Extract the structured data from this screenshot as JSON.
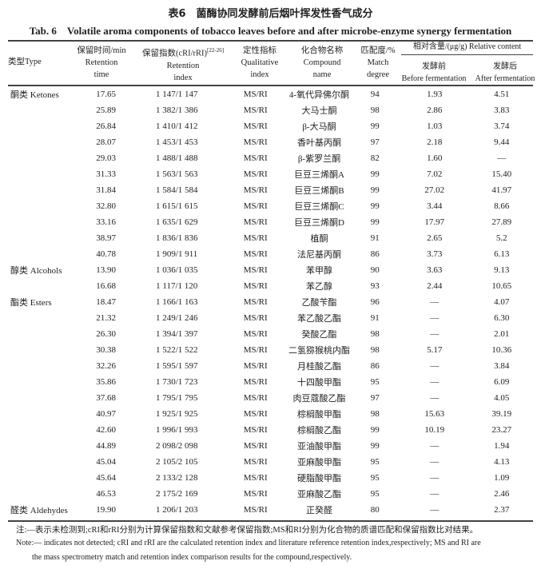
{
  "title_cn": "表6　菌酶协同发酵前后烟叶挥发性香气成分",
  "title_en": "Tab. 6　Volatile aroma components of tobacco leaves before and after microbe-enzyme synergy fermentation",
  "headers": {
    "type": "类型Type",
    "time_cn": "保留时间/min",
    "time_en1": "Retention",
    "time_en2": "time",
    "ri_cn": "保留指数(cRI/rRI)",
    "ri_ref": "[22-26]",
    "ri_en1": "Retention",
    "ri_en2": "index",
    "qual_cn": "定性指标",
    "qual_en1": "Qualitative",
    "qual_en2": "index",
    "comp_cn": "化合物名称",
    "comp_en1": "Compound",
    "comp_en2": "name",
    "match_cn": "匹配度/%",
    "match_en1": "Match",
    "match_en2": "degree",
    "rel": "相对含量/(μg/g) Relative content",
    "before_cn": "发酵前",
    "before_en": "Before fermentation",
    "after_cn": "发酵后",
    "after_en": "After fermentation"
  },
  "rows": [
    [
      "酮类 Ketones",
      "17.65",
      "1 147/1 147",
      "MS/RI",
      "4-氧代异佛尔酮",
      "94",
      "1.93",
      "4.51"
    ],
    [
      "",
      "25.89",
      "1 382/1 386",
      "MS/RI",
      "大马士酮",
      "98",
      "2.86",
      "3.83"
    ],
    [
      "",
      "26.84",
      "1 410/1 412",
      "MS/RI",
      "β-大马酮",
      "99",
      "1.03",
      "3.74"
    ],
    [
      "",
      "28.07",
      "1 453/1 453",
      "MS/RI",
      "香叶基丙酮",
      "97",
      "2.18",
      "9.44"
    ],
    [
      "",
      "29.03",
      "1 488/1 488",
      "MS/RI",
      "β-紫罗兰酮",
      "82",
      "1.60",
      "—"
    ],
    [
      "",
      "31.33",
      "1 563/1 563",
      "MS/RI",
      "巨豆三烯酮A",
      "99",
      "7.02",
      "15.40"
    ],
    [
      "",
      "31.84",
      "1 584/1 584",
      "MS/RI",
      "巨豆三烯酮B",
      "99",
      "27.02",
      "41.97"
    ],
    [
      "",
      "32.80",
      "1 615/1 615",
      "MS/RI",
      "巨豆三烯酮C",
      "99",
      "3.44",
      "8.66"
    ],
    [
      "",
      "33.16",
      "1 635/1 629",
      "MS/RI",
      "巨豆三烯酮D",
      "99",
      "17.97",
      "27.89"
    ],
    [
      "",
      "38.97",
      "1 836/1 836",
      "MS/RI",
      "植酮",
      "91",
      "2.65",
      "5.2"
    ],
    [
      "",
      "40.78",
      "1 909/1 911",
      "MS/RI",
      "法尼基丙酮",
      "86",
      "3.73",
      "6.13"
    ],
    [
      "醇类 Alcohols",
      "13.90",
      "1 036/1 035",
      "MS/RI",
      "苯甲醇",
      "90",
      "3.63",
      "9.13"
    ],
    [
      "",
      "16.68",
      "1 117/1 120",
      "MS/RI",
      "苯乙醇",
      "93",
      "2.44",
      "10.65"
    ],
    [
      "酯类 Esters",
      "18.47",
      "1 166/1 163",
      "MS/RI",
      "乙酸苄酯",
      "96",
      "—",
      "4.07"
    ],
    [
      "",
      "21.32",
      "1 249/1 246",
      "MS/RI",
      "苯乙酸乙酯",
      "91",
      "—",
      "6.30"
    ],
    [
      "",
      "26.30",
      "1 394/1 397",
      "MS/RI",
      "癸酸乙酯",
      "98",
      "—",
      "2.01"
    ],
    [
      "",
      "30.38",
      "1 522/1 522",
      "MS/RI",
      "二氢猕猴桃内酯",
      "98",
      "5.17",
      "10.36"
    ],
    [
      "",
      "32.26",
      "1 595/1 597",
      "MS/RI",
      "月桂酸乙酯",
      "86",
      "—",
      "3.84"
    ],
    [
      "",
      "35.86",
      "1 730/1 723",
      "MS/RI",
      "十四酸甲酯",
      "95",
      "—",
      "6.09"
    ],
    [
      "",
      "37.68",
      "1 795/1 795",
      "MS/RI",
      "肉豆蔻酸乙酯",
      "97",
      "—",
      "4.05"
    ],
    [
      "",
      "40.97",
      "1 925/1 925",
      "MS/RI",
      "棕榈酸甲酯",
      "98",
      "15.63",
      "39.19"
    ],
    [
      "",
      "42.60",
      "1 996/1 993",
      "MS/RI",
      "棕榈酸乙酯",
      "99",
      "10.19",
      "23.27"
    ],
    [
      "",
      "44.89",
      "2 098/2 098",
      "MS/RI",
      "亚油酸甲酯",
      "99",
      "—",
      "1.94"
    ],
    [
      "",
      "45.04",
      "2 105/2 105",
      "MS/RI",
      "亚麻酸甲酯",
      "95",
      "—",
      "4.13"
    ],
    [
      "",
      "45.64",
      "2 133/2 128",
      "MS/RI",
      "硬脂酸甲酯",
      "95",
      "—",
      "1.09"
    ],
    [
      "",
      "46.53",
      "2 175/2 169",
      "MS/RI",
      "亚麻酸乙酯",
      "95",
      "—",
      "2.46"
    ],
    [
      "醛类 Aldehydes",
      "19.90",
      "1 206/1 203",
      "MS/RI",
      "正癸醛",
      "80",
      "—",
      "2.37"
    ]
  ],
  "notes": [
    "注:—表示未检测到;cRI和rRI分别为计算保留指数和文献参考保留指数;MS和RI分别为化合物的质谱匹配和保留指数比对结果。",
    "Note:— indicates not detected; cRI and rRI are the calculated retention index and literature reference retention index,respectively; MS and RI are",
    "the mass spectrometry match and retention index comparison results for the compound,respectively."
  ]
}
